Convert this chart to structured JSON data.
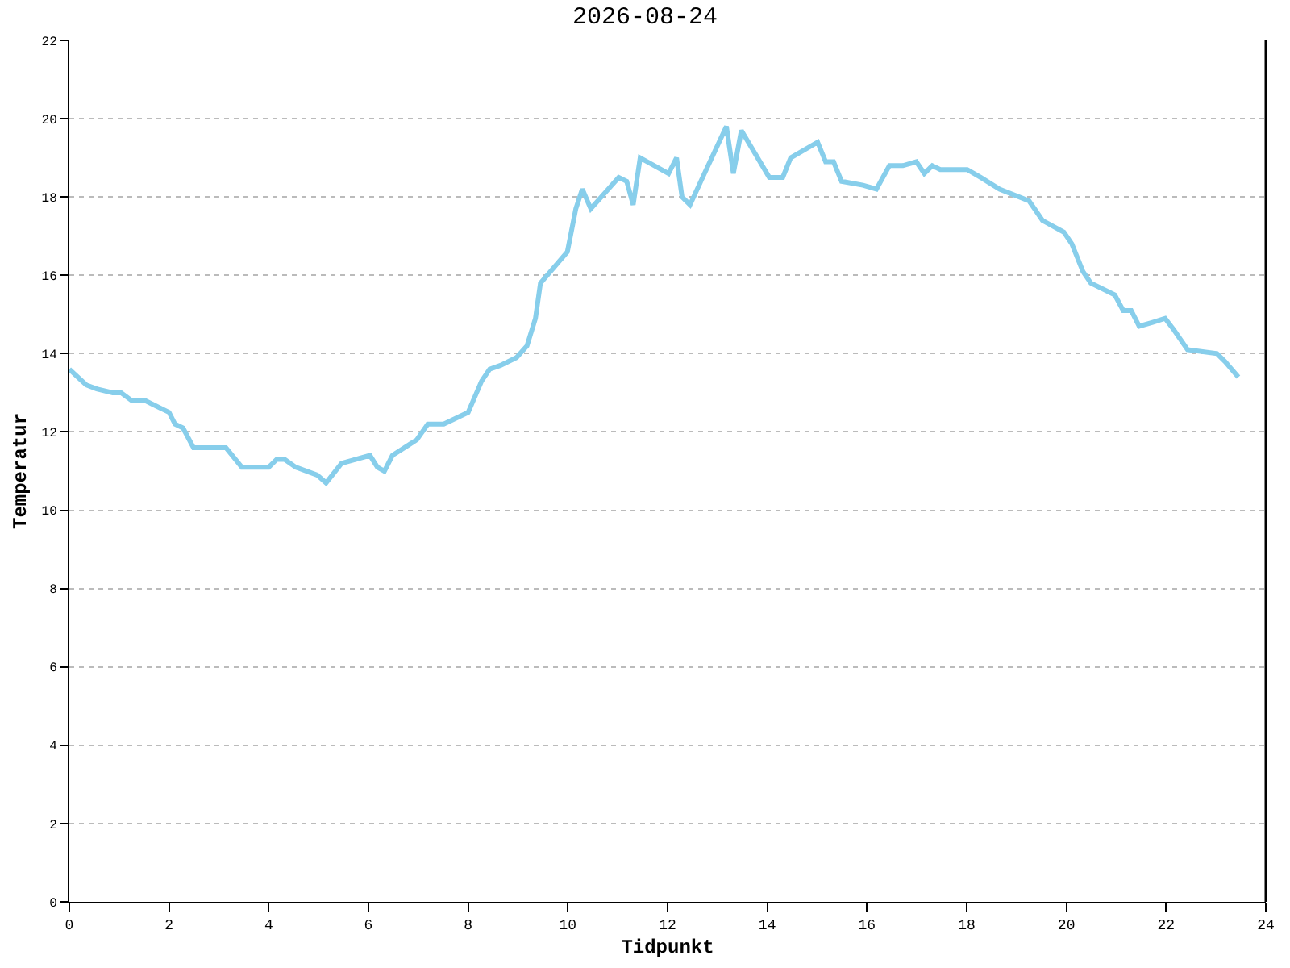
{
  "chart_data": {
    "type": "line",
    "title": "2026-08-24",
    "xlabel": "Tidpunkt",
    "ylabel": "Temperatur",
    "x": [
      0.0,
      0.17,
      0.34,
      0.55,
      0.87,
      1.04,
      1.25,
      1.52,
      1.68,
      2.0,
      2.12,
      2.28,
      2.49,
      3.14,
      3.46,
      4.0,
      4.16,
      4.32,
      4.54,
      4.97,
      5.15,
      5.46,
      6.03,
      6.18,
      6.32,
      6.48,
      6.97,
      7.19,
      7.51,
      8.0,
      8.27,
      8.43,
      8.65,
      8.97,
      9.18,
      9.35,
      9.45,
      9.99,
      10.16,
      10.29,
      10.46,
      11.02,
      11.18,
      11.31,
      11.45,
      12.02,
      12.18,
      12.29,
      12.45,
      12.74,
      13.18,
      13.32,
      13.48,
      14.04,
      14.31,
      14.47,
      15.01,
      15.17,
      15.33,
      15.49,
      15.92,
      16.19,
      16.45,
      16.72,
      16.99,
      17.15,
      17.31,
      17.47,
      18.01,
      18.28,
      18.66,
      19.25,
      19.36,
      19.52,
      19.95,
      20.11,
      20.33,
      20.49,
      20.97,
      21.14,
      21.3,
      21.46,
      21.73,
      21.98,
      22.16,
      22.43,
      23.02,
      23.18,
      23.45
    ],
    "series": [
      {
        "color": "#87ceeb",
        "values": [
          13.6,
          13.4,
          13.2,
          13.1,
          13.0,
          13.0,
          12.8,
          12.8,
          12.7,
          12.5,
          12.2,
          12.1,
          11.6,
          11.6,
          11.1,
          11.1,
          11.3,
          11.3,
          11.1,
          10.9,
          10.7,
          11.2,
          11.4,
          11.1,
          11.0,
          11.4,
          11.8,
          12.2,
          12.2,
          12.5,
          13.3,
          13.6,
          13.7,
          13.9,
          14.2,
          14.9,
          15.8,
          16.6,
          17.7,
          18.2,
          17.7,
          18.5,
          18.4,
          17.8,
          19.0,
          18.6,
          19.0,
          18.0,
          17.8,
          18.6,
          19.8,
          18.6,
          19.7,
          18.5,
          18.5,
          19.0,
          19.4,
          18.9,
          18.9,
          18.4,
          18.3,
          18.2,
          18.8,
          18.8,
          18.9,
          18.6,
          18.8,
          18.7,
          18.7,
          18.5,
          18.2,
          17.9,
          17.7,
          17.4,
          17.1,
          16.8,
          16.1,
          15.8,
          15.5,
          15.1,
          15.1,
          14.7,
          14.8,
          14.9,
          14.6,
          14.1,
          14.0,
          13.8,
          13.4
        ]
      }
    ],
    "xlim": [
      0,
      24
    ],
    "xticks": [
      0,
      2,
      4,
      6,
      8,
      10,
      12,
      14,
      16,
      18,
      20,
      22,
      24
    ],
    "ylim": [
      0,
      22
    ],
    "yticks": [
      0,
      2,
      4,
      6,
      8,
      10,
      12,
      14,
      16,
      18,
      20,
      22
    ],
    "grid": "y",
    "marker": "none",
    "line_style": "solid"
  }
}
